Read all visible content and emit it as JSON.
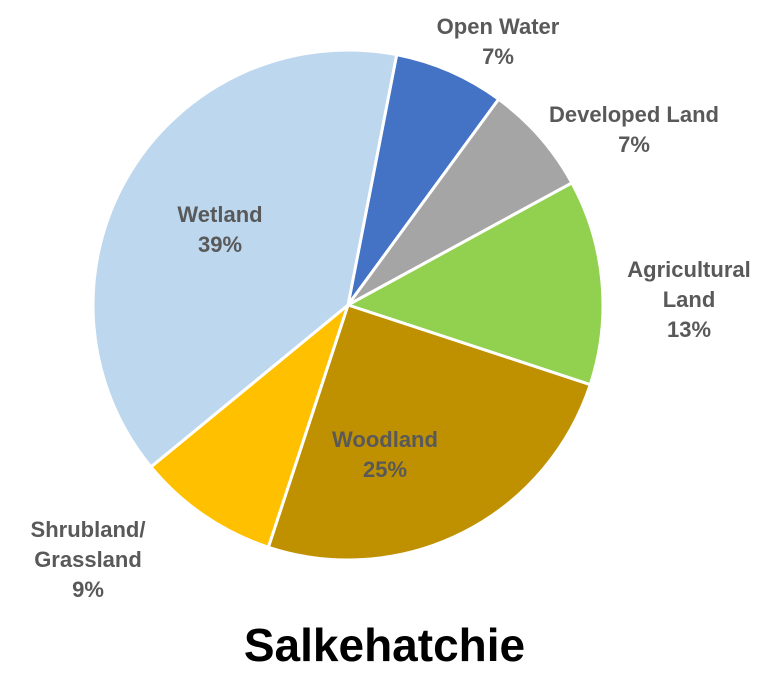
{
  "chart_data": {
    "type": "pie",
    "title": "Salkehatchie",
    "categories": [
      "Open Water",
      "Developed Land",
      "Agricultural Land",
      "Woodland",
      "Shrubland/ Grassland",
      "Wetland"
    ],
    "values": [
      7,
      7,
      13,
      25,
      9,
      39
    ],
    "value_labels": [
      "7%",
      "7%",
      "13%",
      "25%",
      "9%",
      "39%"
    ],
    "colors": [
      "#4472c4",
      "#a5a5a5",
      "#92d050",
      "#bf9000",
      "#ffc000",
      "#bdd7ee"
    ]
  }
}
